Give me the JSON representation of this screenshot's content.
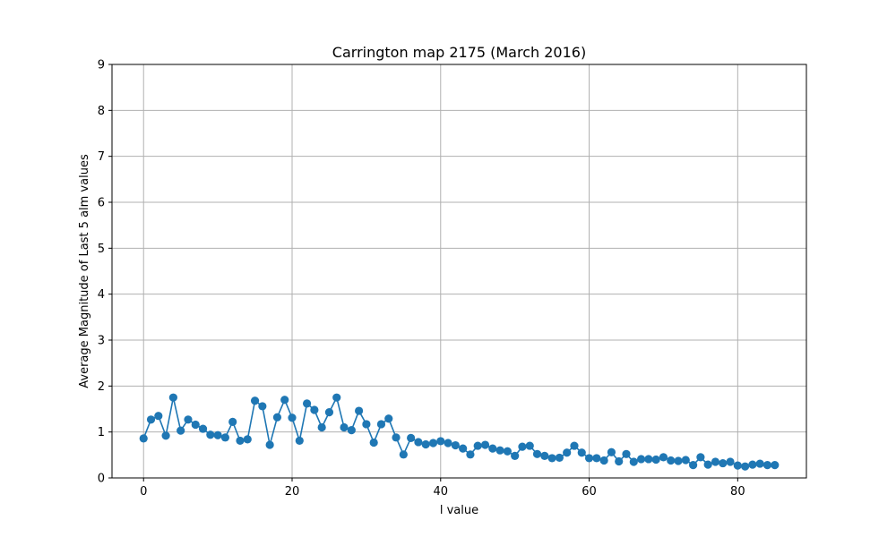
{
  "chart_data": {
    "type": "line",
    "title": "Carrington map 2175 (March 2016)",
    "xlabel": "l value",
    "ylabel": "Average Magnitude of Last 5 alm values",
    "xlim": [
      -4.25,
      89.25
    ],
    "ylim": [
      0,
      9
    ],
    "xticks": [
      0,
      20,
      40,
      60,
      80
    ],
    "yticks": [
      0,
      1,
      2,
      3,
      4,
      5,
      6,
      7,
      8,
      9
    ],
    "grid": true,
    "marker": "circle",
    "series": [
      {
        "color": "#1f77b4",
        "x": [
          0,
          1,
          2,
          3,
          4,
          5,
          6,
          7,
          8,
          9,
          10,
          11,
          12,
          13,
          14,
          15,
          16,
          17,
          18,
          19,
          20,
          21,
          22,
          23,
          24,
          25,
          26,
          27,
          28,
          29,
          30,
          31,
          32,
          33,
          34,
          35,
          36,
          37,
          38,
          39,
          40,
          41,
          42,
          43,
          44,
          45,
          46,
          47,
          48,
          49,
          50,
          51,
          52,
          53,
          54,
          55,
          56,
          57,
          58,
          59,
          60,
          61,
          62,
          63,
          64,
          65,
          66,
          67,
          68,
          69,
          70,
          71,
          72,
          73,
          74,
          75,
          76,
          77,
          78,
          79,
          80,
          81,
          82,
          83,
          84,
          85
        ],
        "y": [
          0.86,
          1.27,
          1.35,
          0.92,
          1.75,
          1.03,
          1.27,
          1.16,
          1.07,
          0.94,
          0.93,
          0.88,
          1.22,
          0.81,
          0.84,
          1.68,
          1.56,
          0.72,
          1.32,
          1.7,
          1.31,
          0.81,
          1.62,
          1.48,
          1.1,
          1.43,
          1.75,
          1.1,
          1.04,
          1.46,
          1.17,
          0.77,
          1.17,
          1.29,
          0.88,
          0.51,
          0.87,
          0.78,
          0.73,
          0.76,
          0.8,
          0.76,
          0.71,
          0.64,
          0.51,
          0.7,
          0.72,
          0.64,
          0.6,
          0.58,
          0.48,
          0.68,
          0.7,
          0.52,
          0.48,
          0.43,
          0.44,
          0.55,
          0.7,
          0.55,
          0.43,
          0.43,
          0.38,
          0.56,
          0.36,
          0.52,
          0.35,
          0.41,
          0.41,
          0.4,
          0.45,
          0.38,
          0.37,
          0.39,
          0.28,
          0.45,
          0.29,
          0.35,
          0.32,
          0.35,
          0.27,
          0.25,
          0.29,
          0.31,
          0.28,
          0.28
        ]
      }
    ]
  }
}
